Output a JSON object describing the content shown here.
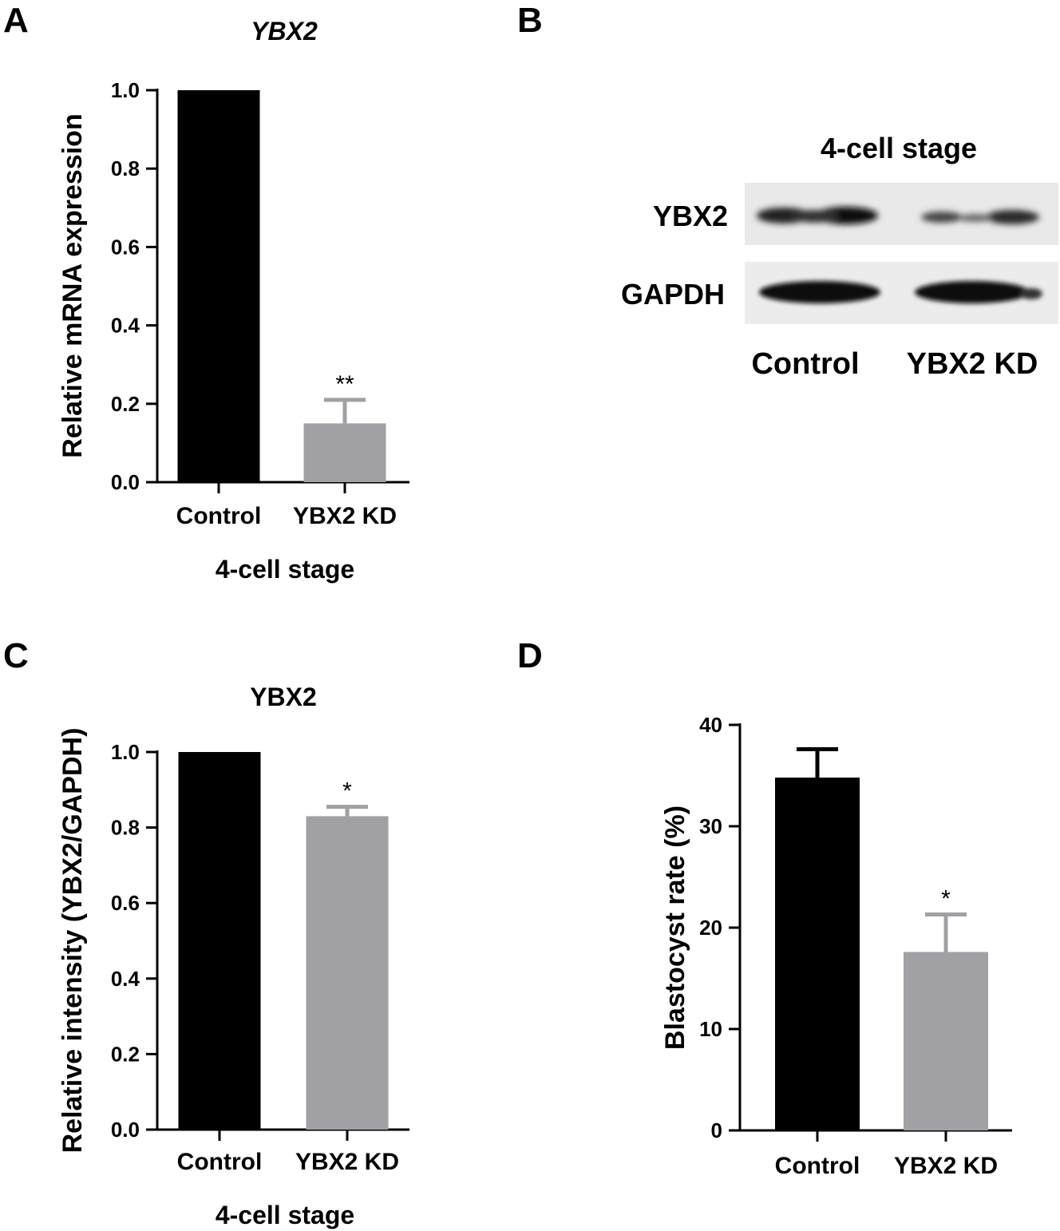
{
  "panels": {
    "A": {
      "letter": "A"
    },
    "B": {
      "letter": "B",
      "title": "4-cell stage",
      "rows": [
        "YBX2",
        "GAPDH"
      ],
      "lanes": [
        "Control",
        "YBX2 KD"
      ]
    },
    "C": {
      "letter": "C"
    },
    "D": {
      "letter": "D"
    }
  },
  "colors": {
    "control": "#000000",
    "kd": "#a1a1a5",
    "blot_bg": "#e9e9e9",
    "band": "#111111"
  },
  "chart_data": [
    {
      "id": "A",
      "type": "bar",
      "title": "YBX2",
      "title_italic": true,
      "categories": [
        "Control",
        "YBX2 KD"
      ],
      "values": [
        1.0,
        0.15
      ],
      "errors": [
        0,
        0.06
      ],
      "significance": [
        "",
        "**"
      ],
      "xlabel": "4-cell stage",
      "ylabel": "Relative mRNA expression",
      "ylim": [
        0,
        1.0
      ],
      "yticks": [
        "0.0",
        "0.2",
        "0.4",
        "0.6",
        "0.8",
        "1.0"
      ],
      "ytick_values": [
        0,
        0.2,
        0.4,
        0.6,
        0.8,
        1.0
      ]
    },
    {
      "id": "C",
      "type": "bar",
      "title": "YBX2",
      "title_italic": false,
      "categories": [
        "Control",
        "YBX2 KD"
      ],
      "values": [
        1.0,
        0.83
      ],
      "errors": [
        0,
        0.025
      ],
      "significance": [
        "",
        "*"
      ],
      "xlabel": "4-cell stage",
      "ylabel": "Relative intensity (YBX2/GAPDH)",
      "ylim": [
        0,
        1.0
      ],
      "yticks": [
        "0.0",
        "0.2",
        "0.4",
        "0.6",
        "0.8",
        "1.0"
      ],
      "ytick_values": [
        0,
        0.2,
        0.4,
        0.6,
        0.8,
        1.0
      ]
    },
    {
      "id": "D",
      "type": "bar",
      "title": "",
      "title_italic": false,
      "categories": [
        "Control",
        "YBX2 KD"
      ],
      "values": [
        34.8,
        17.6
      ],
      "errors": [
        2.8,
        3.7
      ],
      "significance": [
        "",
        "*"
      ],
      "xlabel": "",
      "ylabel": "Blastocyst rate (%)",
      "ylim": [
        0,
        40
      ],
      "yticks": [
        "0",
        "10",
        "20",
        "30",
        "40"
      ],
      "ytick_values": [
        0,
        10,
        20,
        30,
        40
      ]
    }
  ]
}
